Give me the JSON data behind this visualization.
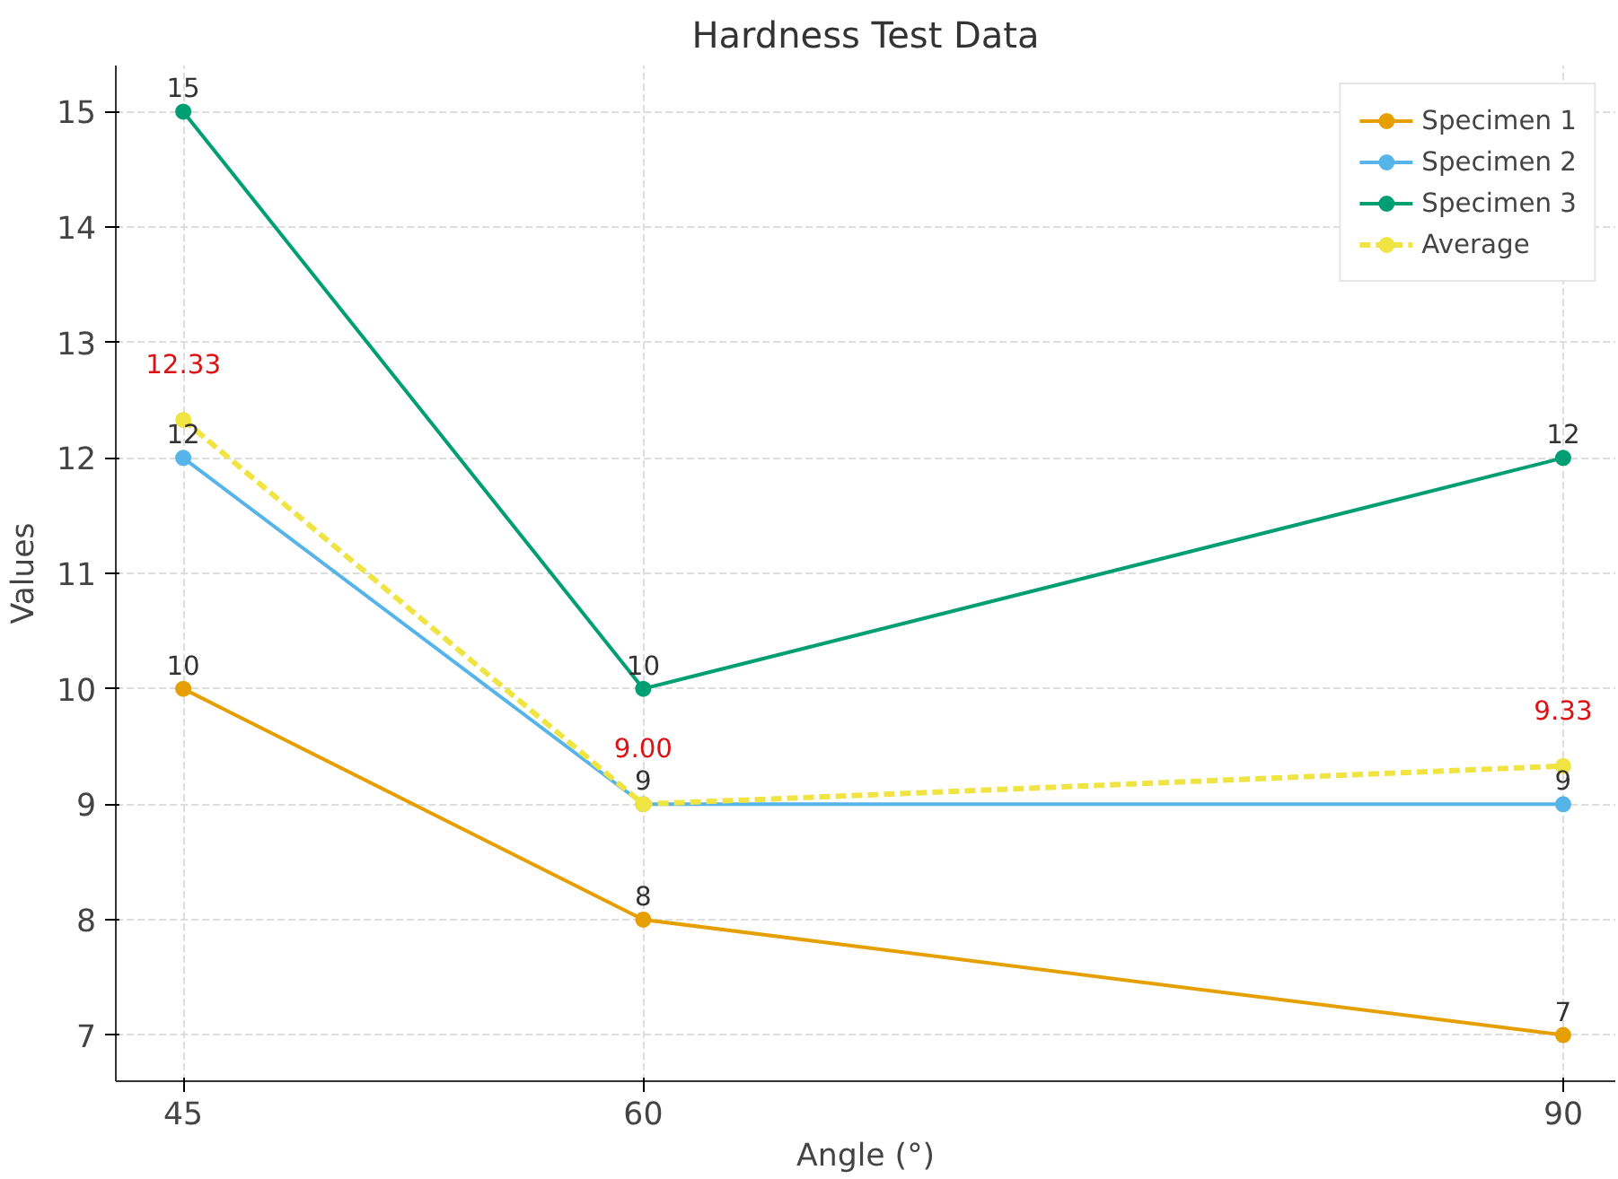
{
  "chart_data": {
    "type": "line",
    "title": "Hardness Test Data",
    "xlabel": "Angle (°)",
    "ylabel": "Values",
    "x": [
      45,
      60,
      90
    ],
    "series": [
      {
        "name": "Specimen 1",
        "color": "#e69f00",
        "values": [
          10,
          8,
          7
        ],
        "value_labels": [
          "10",
          "8",
          "7"
        ]
      },
      {
        "name": "Specimen 2",
        "color": "#56b4e9",
        "values": [
          12,
          9,
          9
        ],
        "value_labels": [
          "12",
          "9",
          "9"
        ]
      },
      {
        "name": "Specimen 3",
        "color": "#009e73",
        "values": [
          15,
          10,
          12
        ],
        "value_labels": [
          "15",
          "10",
          "12"
        ]
      },
      {
        "name": "Average",
        "color": "#f0e442",
        "values": [
          12.33,
          9.0,
          9.33
        ],
        "value_labels": [
          "12.33",
          "9.00",
          "9.33"
        ],
        "line_style": "dashed"
      }
    ],
    "xlim": [
      42.8,
      91.7
    ],
    "ylim": [
      6.6,
      15.4
    ],
    "xticks": [
      45,
      60,
      90
    ],
    "yticks": [
      7,
      8,
      9,
      10,
      11,
      12,
      13,
      14,
      15
    ],
    "grid": true,
    "legend": "top right",
    "marker": "circle",
    "line_style": "solid"
  }
}
